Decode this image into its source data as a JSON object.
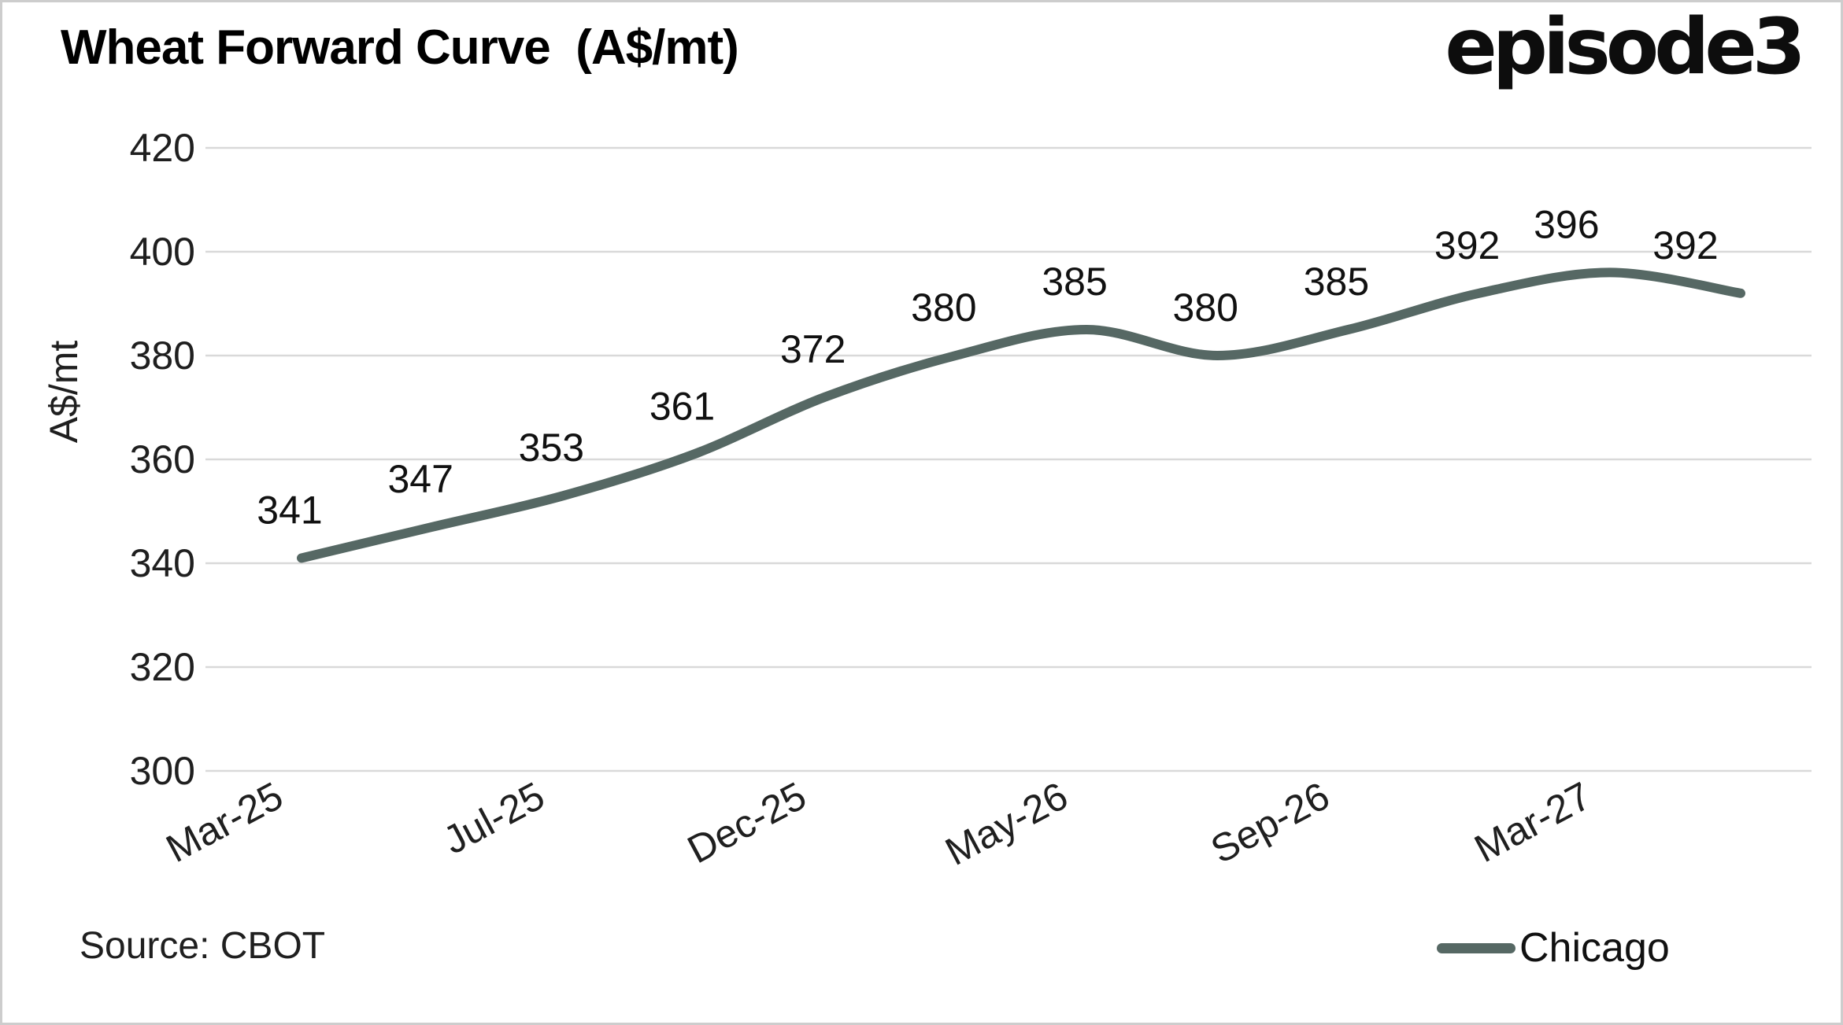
{
  "title": "Wheat Forward Curve  (A$/mt)",
  "logo": {
    "text": "episode3"
  },
  "source": "Source: CBOT",
  "legend": {
    "label": "Chicago"
  },
  "colors": {
    "series": "#566864",
    "grid": "#d9d9d9",
    "text": "#1f1f1f",
    "title": "#000000",
    "border": "#cdcdcd",
    "background": "#ffffff"
  },
  "chart_data": {
    "type": "line",
    "title": "Wheat Forward Curve (A$/mt)",
    "xlabel": "",
    "ylabel": "A$/mt",
    "ylim": [
      300,
      420
    ],
    "ytick_step": 20,
    "ytick_labels": [
      "300",
      "320",
      "340",
      "360",
      "380",
      "400",
      "420"
    ],
    "grid": "horizontal",
    "legend_position": "bottom-right",
    "num_points": 12,
    "series": [
      {
        "name": "Chicago",
        "values": [
          341,
          347,
          353,
          361,
          372,
          380,
          385,
          380,
          385,
          392,
          396,
          392
        ],
        "point_labels": [
          "341",
          "347",
          "353",
          "361",
          "372",
          "380",
          "385",
          "380",
          "385",
          "392",
          "396",
          "392"
        ]
      }
    ],
    "xticks": [
      {
        "index": 0,
        "label": "Mar-25"
      },
      {
        "index": 2,
        "label": "Jul-25"
      },
      {
        "index": 4,
        "label": "Dec-25"
      },
      {
        "index": 6,
        "label": "May-26"
      },
      {
        "index": 8,
        "label": "Sep-26"
      },
      {
        "index": 10,
        "label": "Mar-27"
      }
    ],
    "xtick_rotation_deg": -28
  }
}
